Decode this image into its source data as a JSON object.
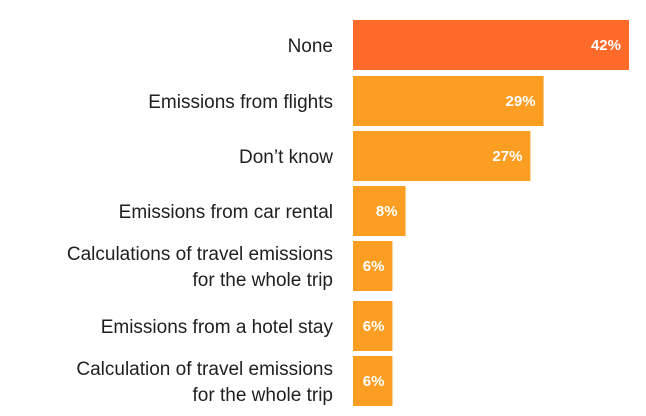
{
  "chart_data": {
    "type": "bar",
    "orientation": "horizontal",
    "categories": [
      [
        "None"
      ],
      [
        "Emissions from flights"
      ],
      [
        "Don’t know"
      ],
      [
        "Emissions from car rental"
      ],
      [
        "Calculations of travel emissions",
        "for the whole trip"
      ],
      [
        "Emissions from a hotel stay"
      ],
      [
        "Calculation of travel emissions",
        "for the whole trip"
      ]
    ],
    "values": [
      42,
      29,
      27,
      8,
      6,
      6,
      6
    ],
    "value_labels": [
      "42%",
      "29%",
      "27%",
      "8%",
      "6%",
      "6%",
      "6%"
    ],
    "bar_colors": [
      "#fe6a2a",
      "#fb9e22",
      "#fb9e22",
      "#fb9e22",
      "#fb9e22",
      "#fb9e22",
      "#fb9e22"
    ],
    "xlim": [
      0,
      42
    ],
    "grid": false,
    "legend": "none"
  }
}
